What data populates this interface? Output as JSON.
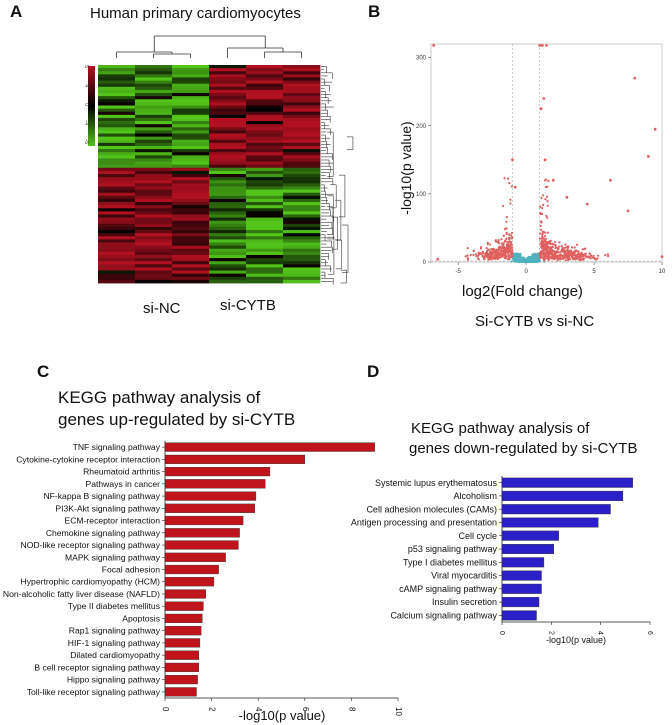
{
  "panels": {
    "A": {
      "letter": "A",
      "title": "Human primary cardiomyocytes",
      "group_labels": [
        "si-NC",
        "si-CYTB"
      ],
      "scale_ticks": [
        "5",
        "4",
        "0",
        "-4",
        "-5"
      ],
      "colors": {
        "high": "#b01020",
        "mid": "#000000",
        "low": "#52c41a"
      }
    },
    "B": {
      "letter": "B",
      "xlabel": "log2(Fold change)",
      "ylabel": "-log10(p value)",
      "subtitle": "Si-CYTB vs si-NC"
    },
    "C": {
      "letter": "C",
      "title_line1": "KEGG pathway analysis of",
      "title_line2": "genes up-regulated by si-CYTB"
    },
    "D": {
      "letter": "D",
      "title_line1": "KEGG pathway analysis of",
      "title_line2": "genes down-regulated by si-CYTB"
    }
  },
  "chart_data": [
    {
      "type": "heatmap",
      "title": "Human primary cardiomyocytes",
      "columns": [
        "si-NC",
        "si-NC",
        "si-NC",
        "si-CYTB",
        "si-CYTB",
        "si-CYTB"
      ],
      "column_groups": [
        "si-NC",
        "si-CYTB"
      ],
      "pattern": "upper block: si-NC low (green) / si-CYTB high (red); lower block: si-NC high (red) / si-CYTB low (green)",
      "color_scale": [
        "#52c41a",
        "#000000",
        "#b01020"
      ]
    },
    {
      "type": "scatter",
      "subtype": "volcano",
      "xlabel": "log2(Fold change)",
      "ylabel": "-log10(p value)",
      "xlim": [
        -7,
        10
      ],
      "ylim": [
        0,
        320
      ],
      "xticks": [
        -5,
        0,
        5,
        10
      ],
      "yticks": [
        0,
        100,
        200,
        300
      ],
      "colors": {
        "significant": "#e06060",
        "nonsignificant": "#4fb3bf"
      },
      "highlighted_points": [
        {
          "x": -6.8,
          "y": 318
        },
        {
          "x": -6.5,
          "y": 4
        },
        {
          "x": -1.0,
          "y": 150
        },
        {
          "x": -0.8,
          "y": 110
        },
        {
          "x": 1.0,
          "y": 318
        },
        {
          "x": 1.2,
          "y": 318
        },
        {
          "x": 1.5,
          "y": 318
        },
        {
          "x": 1.3,
          "y": 240
        },
        {
          "x": 1.1,
          "y": 225
        },
        {
          "x": 1.4,
          "y": 150
        },
        {
          "x": 2.0,
          "y": 120
        },
        {
          "x": 3.0,
          "y": 95
        },
        {
          "x": 4.5,
          "y": 85
        },
        {
          "x": 6.2,
          "y": 120
        },
        {
          "x": 7.5,
          "y": 75
        },
        {
          "x": 8.0,
          "y": 270
        },
        {
          "x": 9.5,
          "y": 195
        },
        {
          "x": 9.0,
          "y": 155
        },
        {
          "x": 10.0,
          "y": 8
        }
      ]
    },
    {
      "type": "bar",
      "orientation": "horizontal",
      "title": "KEGG pathway analysis of genes up-regulated by si-CYTB",
      "xlabel": "-log10(p value)",
      "xlim": [
        0,
        10
      ],
      "xticks": [
        0,
        2,
        4,
        6,
        8,
        10
      ],
      "color": "#c0141c",
      "categories": [
        "TNF signaling pathway",
        "Cytokine-cytokine receptor interaction",
        "Rheumatoid arthritis",
        "Pathways in cancer",
        "NF-kappa B signaling pathway",
        "PI3K-Akt signaling pathway",
        "ECM-receptor interaction",
        "Chemokine signaling pathway",
        "NOD-like receptor signaling pathway",
        "MAPK signaling pathway",
        "Focal adhesion",
        "Hypertrophic cardiomyopathy (HCM)",
        "Non-alcoholic fatty liver disease (NAFLD)",
        "Type II diabetes mellitus",
        "Apoptosis",
        "Rap1 signaling pathway",
        "HIF-1 signaling pathway",
        "Dilated cardiomyopathy",
        "B cell receptor signaling pathway",
        "Hippo signaling pathway",
        "Toll-like receptor signaling pathway"
      ],
      "values": [
        9.0,
        6.0,
        4.5,
        4.3,
        3.9,
        3.85,
        3.35,
        3.2,
        3.15,
        2.6,
        2.3,
        2.1,
        1.75,
        1.65,
        1.6,
        1.55,
        1.5,
        1.45,
        1.45,
        1.4,
        1.35
      ]
    },
    {
      "type": "bar",
      "orientation": "horizontal",
      "title": "KEGG pathway analysis of genes down-regulated by si-CYTB",
      "xlabel": "-log10(p value)",
      "xlim": [
        0,
        6
      ],
      "xticks": [
        0,
        2,
        4,
        6
      ],
      "color": "#2b1fc8",
      "categories": [
        "Systemic lupus erythematosus",
        "Alcoholism",
        "Cell adhesion molecules (CAMs)",
        "Antigen processing and presentation",
        "Cell cycle",
        "p53 signaling pathway",
        "Type I diabetes mellitus",
        "Viral myocarditis",
        "cAMP signaling pathway",
        "Insulin secretion",
        "Calcium signaling pathway"
      ],
      "values": [
        5.3,
        4.9,
        4.4,
        3.9,
        2.3,
        2.1,
        1.7,
        1.6,
        1.6,
        1.5,
        1.4
      ]
    }
  ]
}
